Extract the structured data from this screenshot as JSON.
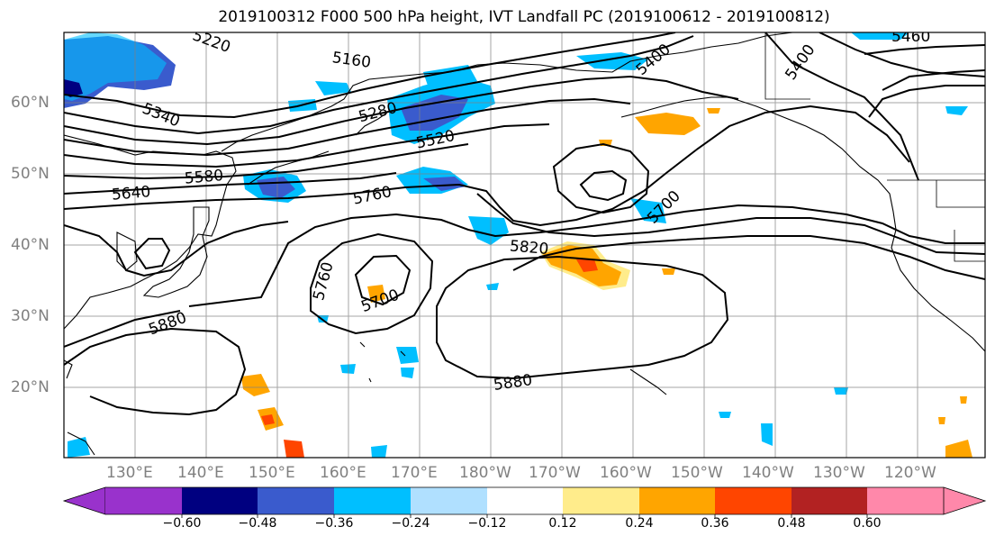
{
  "title": "2019100312 F000 500 hPa height, IVT Landfall PC (2019100612 - 2019100812)",
  "lat_labels": [
    "60°N",
    "50°N",
    "40°N",
    "30°N",
    "20°N"
  ],
  "lon_labels": [
    "130°E",
    "140°E",
    "150°E",
    "160°E",
    "170°E",
    "180°W",
    "170°W",
    "160°W",
    "150°W",
    "140°W",
    "130°W",
    "120°W"
  ],
  "contour_labels": [
    "5220",
    "5160",
    "5400",
    "5460",
    "5400",
    "5280",
    "5340",
    "5520",
    "5580",
    "5640",
    "5760",
    "5700",
    "5820",
    "5760",
    "5700",
    "5880",
    "5880"
  ],
  "colorbar": {
    "colors": [
      "#9932cc",
      "#000080",
      "#3a5bcd",
      "#00bfff",
      "#b0e0ff",
      "#ffffff",
      "#ffec8b",
      "#ffa500",
      "#ff4500",
      "#b22222",
      "#ff88aa"
    ],
    "tick_labels": [
      "−0.60",
      "−0.48",
      "−0.36",
      "−0.24",
      "−0.12",
      "0.12",
      "0.24",
      "0.36",
      "0.48",
      "0.60"
    ]
  }
}
